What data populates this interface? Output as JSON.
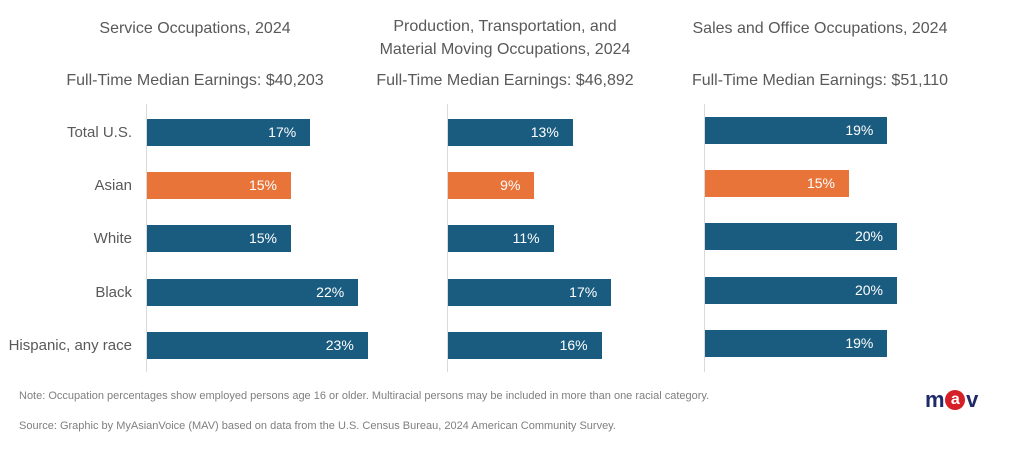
{
  "chart_data": [
    {
      "type": "bar",
      "orientation": "horizontal",
      "title": "Service Occupations, 2024",
      "subtitle": "Full-Time Median Earnings: $40,203",
      "categories": [
        "Total U.S.",
        "Asian",
        "White",
        "Black",
        "Hispanic, any race"
      ],
      "values": [
        17,
        15,
        15,
        22,
        23
      ],
      "value_labels": [
        "17%",
        "15%",
        "15%",
        "22%",
        "23%"
      ],
      "highlight_category": "Asian",
      "xlabel": "",
      "ylabel": "",
      "grid": false,
      "legend": "none"
    },
    {
      "type": "bar",
      "orientation": "horizontal",
      "title": "Production, Transportation, and Material Moving Occupations, 2024",
      "title_lines": [
        "Production, Transportation, and",
        "Material Moving Occupations, 2024"
      ],
      "subtitle": "Full-Time Median Earnings: $46,892",
      "categories": [
        "Total U.S.",
        "Asian",
        "White",
        "Black",
        "Hispanic, any race"
      ],
      "values": [
        13,
        9,
        11,
        17,
        16
      ],
      "value_labels": [
        "13%",
        "9%",
        "11%",
        "17%",
        "16%"
      ],
      "highlight_category": "Asian",
      "xlabel": "",
      "ylabel": "",
      "grid": false,
      "legend": "none"
    },
    {
      "type": "bar",
      "orientation": "horizontal",
      "title": "Sales and Office Occupations, 2024",
      "subtitle": "Full-Time Median Earnings: $51,110",
      "categories": [
        "Total U.S.",
        "Asian",
        "White",
        "Black",
        "Hispanic, any race"
      ],
      "values": [
        19,
        15,
        20,
        20,
        19
      ],
      "value_labels": [
        "19%",
        "15%",
        "20%",
        "20%",
        "19%"
      ],
      "highlight_category": "Asian",
      "xlabel": "",
      "ylabel": "",
      "grid": false,
      "legend": "none"
    }
  ],
  "colors": {
    "default_bar": "#1a5c80",
    "highlight_bar": "#e8743a",
    "logo_text": "#1f2a6b",
    "logo_accent": "#d62027"
  },
  "footer": {
    "note": "Note: Occupation percentages show employed persons age 16 or older.   Multiracial persons may be included in more than one racial category.",
    "source": "Source: Graphic by MyAsianVoice (MAV) based on data from the  U.S. Census Bureau,  2024 American Community Survey."
  },
  "logo": {
    "left": "m",
    "accent": "a",
    "right": "v"
  }
}
